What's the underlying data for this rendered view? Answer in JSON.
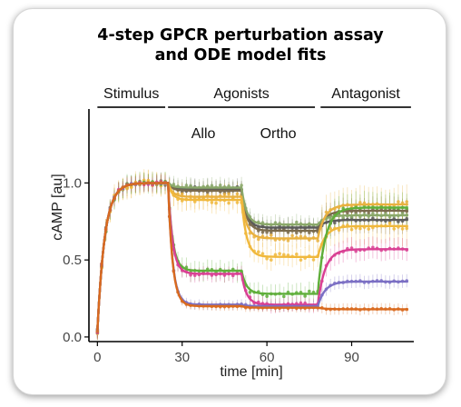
{
  "chart_data": {
    "type": "line",
    "title_lines": [
      "4-step GPCR perturbation assay",
      "and ODE model fits"
    ],
    "xlabel": "time [min]",
    "ylabel": "cAMP [au]",
    "xlim": [
      -3,
      112
    ],
    "ylim": [
      -0.03,
      1.48
    ],
    "x_ticks": [
      0,
      30,
      60,
      90
    ],
    "y_ticks": [
      0.0,
      0.5,
      1.0
    ],
    "y_tick_labels": [
      "0.0",
      "0.5",
      "1.0"
    ],
    "grid": false,
    "legend": "none",
    "phases": [
      {
        "label": "Stimulus",
        "start": 0,
        "end": 24
      },
      {
        "label": "Agonists",
        "start": 25,
        "end": 77
      },
      {
        "label": "Antagonist",
        "start": 79,
        "end": 111
      }
    ],
    "sub_phases": [
      {
        "label": "Allo",
        "start": 25,
        "end": 50
      },
      {
        "label": "Ortho",
        "start": 51,
        "end": 77
      }
    ],
    "phase_times": [
      0,
      25,
      51,
      78,
      110
    ],
    "series": [
      {
        "color": "#5a5a5a",
        "levels": [
          1.0,
          0.96,
          0.71,
          0.76
        ],
        "noise": 0.05
      },
      {
        "color": "#7a6b4e",
        "levels": [
          1.0,
          0.95,
          0.69,
          0.82
        ],
        "noise": 0.05
      },
      {
        "color": "#8aa86a",
        "levels": [
          1.0,
          0.97,
          0.73,
          0.79
        ],
        "noise": 0.05
      },
      {
        "color": "#e9b13f",
        "levels": [
          1.0,
          0.91,
          0.64,
          0.86
        ],
        "noise": 0.07
      },
      {
        "color": "#f0b83c",
        "levels": [
          1.0,
          0.89,
          0.52,
          0.72
        ],
        "noise": 0.07
      },
      {
        "color": "#5fae3a",
        "levels": [
          1.0,
          0.43,
          0.28,
          0.84
        ],
        "noise": 0.06
      },
      {
        "color": "#d93f93",
        "levels": [
          1.0,
          0.41,
          0.21,
          0.57
        ],
        "noise": 0.04
      },
      {
        "color": "#7b6fc4",
        "levels": [
          1.0,
          0.21,
          0.2,
          0.36
        ],
        "noise": 0.02
      },
      {
        "color": "#d96a1e",
        "levels": [
          1.0,
          0.2,
          0.19,
          0.18
        ],
        "noise": 0.015
      }
    ]
  }
}
